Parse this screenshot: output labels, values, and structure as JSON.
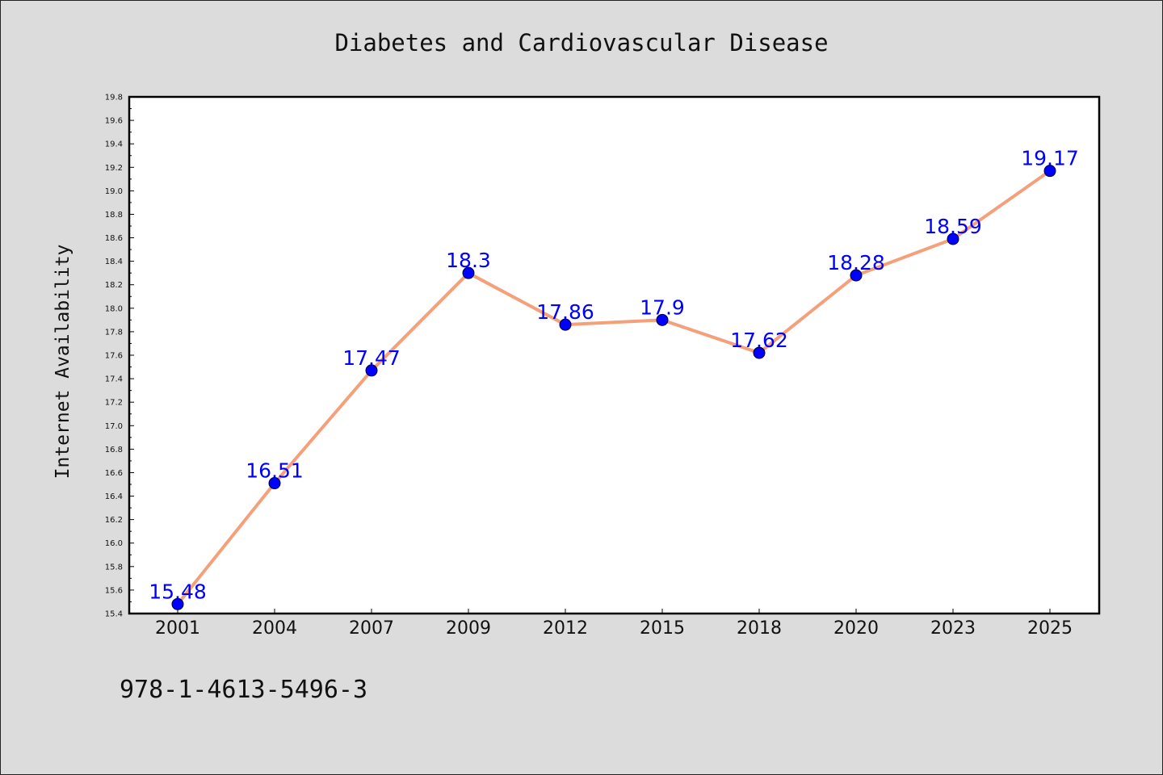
{
  "chart_data": {
    "type": "line",
    "title": "Diabetes and Cardiovascular Disease",
    "xlabel": "",
    "ylabel": "Internet Availability",
    "categories": [
      "2001",
      "2004",
      "2007",
      "2009",
      "2012",
      "2015",
      "2018",
      "2020",
      "2023",
      "2025"
    ],
    "values": [
      15.48,
      16.51,
      17.47,
      18.3,
      17.86,
      17.9,
      17.62,
      18.28,
      18.59,
      19.17
    ],
    "data_labels": [
      "15.48",
      "16.51",
      "17.47",
      "18.3",
      "17.86",
      "17.9",
      "17.62",
      "18.28",
      "18.59",
      "19.17"
    ],
    "ylim": [
      15.4,
      19.8
    ],
    "yticks": [
      "15.4",
      "15.6",
      "15.8",
      "16.0",
      "16.2",
      "16.4",
      "16.6",
      "16.8",
      "17.0",
      "17.2",
      "17.4",
      "17.6",
      "17.8",
      "18.0",
      "18.2",
      "18.4",
      "18.6",
      "18.8",
      "19.0",
      "19.2",
      "19.4",
      "19.6",
      "19.8"
    ],
    "grid": false,
    "legend": "none",
    "line_color": "#f4a07a",
    "marker_color": "#0000ff",
    "label_color": "#0000ff"
  },
  "footer": {
    "text": "978-1-4613-5496-3"
  }
}
